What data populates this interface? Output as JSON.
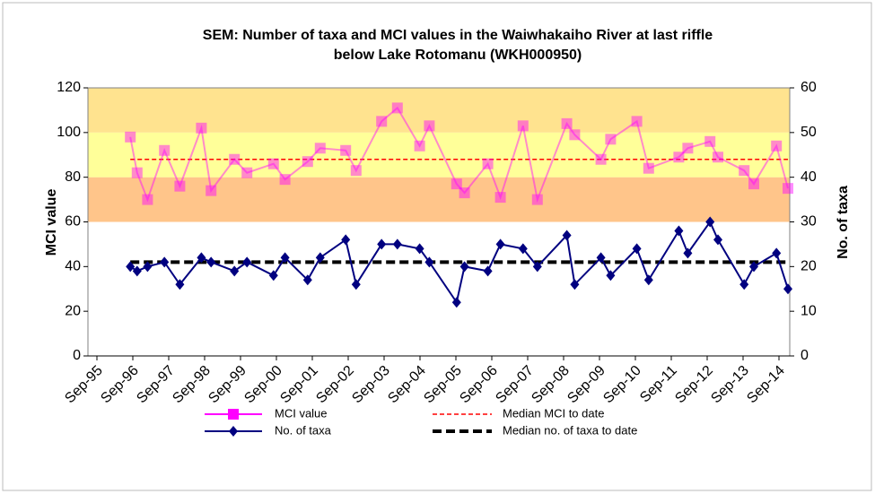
{
  "chart_data": {
    "type": "line",
    "title": [
      "SEM: Number of taxa and MCI values in the Waiwhakaiho River at last riffle",
      "below Lake Rotomanu (WKH000950)"
    ],
    "y_label": "MCI value",
    "y2_label": "No. of taxa",
    "xlim": [
      1995.42,
      2014.97
    ],
    "xticks": [
      {
        "value": 1995.67,
        "label": "Sep-95"
      },
      {
        "value": 1996.67,
        "label": "Sep-96"
      },
      {
        "value": 1997.67,
        "label": "Sep-97"
      },
      {
        "value": 1998.67,
        "label": "Sep-98"
      },
      {
        "value": 1999.67,
        "label": "Sep-99"
      },
      {
        "value": 2000.67,
        "label": "Sep-00"
      },
      {
        "value": 2001.67,
        "label": "Sep-01"
      },
      {
        "value": 2002.67,
        "label": "Sep-02"
      },
      {
        "value": 2003.67,
        "label": "Sep-03"
      },
      {
        "value": 2004.67,
        "label": "Sep-04"
      },
      {
        "value": 2005.67,
        "label": "Sep-05"
      },
      {
        "value": 2006.67,
        "label": "Sep-06"
      },
      {
        "value": 2007.67,
        "label": "Sep-07"
      },
      {
        "value": 2008.67,
        "label": "Sep-08"
      },
      {
        "value": 2009.67,
        "label": "Sep-09"
      },
      {
        "value": 2010.67,
        "label": "Sep-10"
      },
      {
        "value": 2011.67,
        "label": "Sep-11"
      },
      {
        "value": 2012.67,
        "label": "Sep-12"
      },
      {
        "value": 2013.67,
        "label": "Sep-13"
      },
      {
        "value": 2014.67,
        "label": "Sep-14"
      }
    ],
    "ylim": [
      0,
      120
    ],
    "yticks": [
      0,
      20,
      40,
      60,
      80,
      100,
      120
    ],
    "y2lim": [
      0,
      60
    ],
    "y2ticks": [
      0,
      10,
      20,
      30,
      40,
      50,
      60
    ],
    "bands": [
      {
        "from": 60,
        "to": 80,
        "color": "#ffc58a"
      },
      {
        "from": 80,
        "to": 100,
        "color": "#ffff99"
      },
      {
        "from": 100,
        "to": 120,
        "color": "#ffe38f"
      }
    ],
    "x": [
      1996.6,
      1996.79,
      1997.08,
      1997.55,
      1997.98,
      1998.58,
      1998.85,
      1999.5,
      1999.85,
      2000.59,
      2000.91,
      2001.54,
      2001.89,
      2002.6,
      2002.89,
      2003.6,
      2004.04,
      2004.66,
      2004.93,
      2005.69,
      2005.91,
      2006.56,
      2006.91,
      2007.54,
      2007.94,
      2008.76,
      2008.98,
      2009.71,
      2009.98,
      2010.71,
      2011.04,
      2011.88,
      2012.13,
      2012.75,
      2012.97,
      2013.7,
      2013.97,
      2014.6,
      2014.92
    ],
    "series": [
      {
        "name": "MCI value",
        "color": "#ff00ff",
        "marker": "square",
        "values": [
          98,
          82,
          70,
          92,
          76,
          102,
          74,
          88,
          82,
          86,
          79,
          87,
          93,
          92,
          83,
          105,
          111,
          94,
          103,
          77,
          73,
          86,
          71,
          103,
          70,
          104,
          99,
          88,
          97,
          105,
          84,
          89,
          93,
          96,
          89,
          83,
          77,
          94,
          75
        ]
      },
      {
        "name": "No. of taxa",
        "color": "#000080",
        "marker": "diamond",
        "axis": "y2",
        "values": [
          20,
          19,
          20,
          21,
          16,
          22,
          21,
          19,
          21,
          18,
          22,
          17,
          22,
          26,
          16,
          25,
          25,
          24,
          21,
          12,
          20,
          19,
          25,
          24,
          20,
          27,
          16,
          22,
          18,
          24,
          17,
          28,
          23,
          30,
          26,
          16,
          20,
          23,
          15
        ]
      }
    ],
    "medians": [
      {
        "name": "Median MCI to date",
        "value": 88,
        "color": "#ff0000"
      },
      {
        "name": "Median no. of taxa to date",
        "value": 21,
        "color": "#000000",
        "axis": "y2"
      }
    ]
  }
}
